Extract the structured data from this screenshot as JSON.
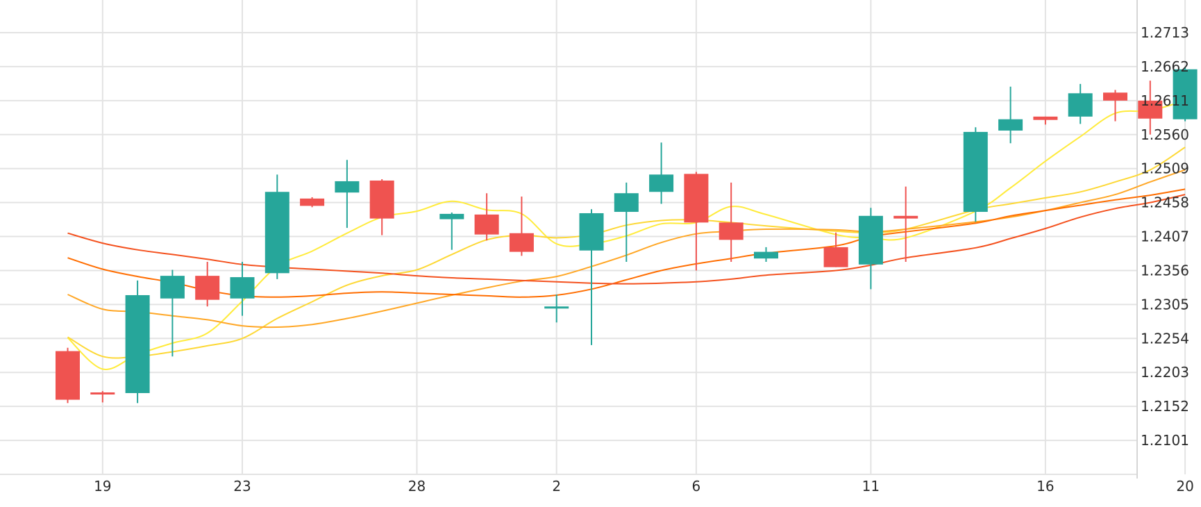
{
  "chart_data": {
    "type": "candlestick",
    "x_tick_labels": [
      "19",
      "23",
      "28",
      "2",
      "6",
      "11",
      "16",
      "20"
    ],
    "y_tick_labels": [
      "1.2713",
      "1.2662",
      "1.2611",
      "1.2560",
      "1.2509",
      "1.2458",
      "1.2407",
      "1.2356",
      "1.2305",
      "1.2254",
      "1.2203",
      "1.2152",
      "1.2101"
    ],
    "y_axis_position": "right",
    "grid": true,
    "ylim": [
      1.205,
      1.2756
    ],
    "colors": {
      "up": "#26a69a",
      "down": "#ef5350",
      "grid": "#e3e3e3"
    },
    "x_tick_dates": [
      "2024-04-19",
      "2024-04-23",
      "2024-04-28",
      "2024-05-02",
      "2024-05-06",
      "2024-05-11",
      "2024-05-16",
      "2024-05-20"
    ],
    "candles": [
      {
        "date": "2024-04-18",
        "open": 1.2235,
        "high": 1.224,
        "low": 1.2157,
        "close": 1.2162
      },
      {
        "date": "2024-04-19",
        "open": 1.2173,
        "high": 1.2175,
        "low": 1.2158,
        "close": 1.2171
      },
      {
        "date": "2024-04-20",
        "open": 1.2172,
        "high": 1.2341,
        "low": 1.2157,
        "close": 1.2319
      },
      {
        "date": "2024-04-21",
        "open": 1.2314,
        "high": 1.2357,
        "low": 1.2227,
        "close": 1.2348
      },
      {
        "date": "2024-04-22",
        "open": 1.2348,
        "high": 1.2369,
        "low": 1.2302,
        "close": 1.2312
      },
      {
        "date": "2024-04-23",
        "open": 1.2314,
        "high": 1.2369,
        "low": 1.2288,
        "close": 1.2346
      },
      {
        "date": "2024-04-24",
        "open": 1.2352,
        "high": 1.25,
        "low": 1.2343,
        "close": 1.2474
      },
      {
        "date": "2024-04-25",
        "open": 1.2464,
        "high": 1.2466,
        "low": 1.2451,
        "close": 1.2453
      },
      {
        "date": "2024-04-26",
        "open": 1.2473,
        "high": 1.2522,
        "low": 1.242,
        "close": 1.249
      },
      {
        "date": "2024-04-27",
        "open": 1.2491,
        "high": 1.2493,
        "low": 1.2409,
        "close": 1.2434
      },
      {
        "date": "2024-04-29",
        "open": 1.2433,
        "high": 1.2443,
        "low": 1.2387,
        "close": 1.2441
      },
      {
        "date": "2024-04-30",
        "open": 1.244,
        "high": 1.2472,
        "low": 1.2401,
        "close": 1.241
      },
      {
        "date": "2024-05-01",
        "open": 1.2412,
        "high": 1.2467,
        "low": 1.2378,
        "close": 1.2384
      },
      {
        "date": "2024-05-02",
        "open": 1.2302,
        "high": 1.232,
        "low": 1.2278,
        "close": 1.2302
      },
      {
        "date": "2024-05-03",
        "open": 1.2386,
        "high": 1.2448,
        "low": 1.2244,
        "close": 1.2442
      },
      {
        "date": "2024-05-04",
        "open": 1.2444,
        "high": 1.2488,
        "low": 1.2369,
        "close": 1.2472
      },
      {
        "date": "2024-05-05",
        "open": 1.2474,
        "high": 1.2548,
        "low": 1.2456,
        "close": 1.25
      },
      {
        "date": "2024-05-06",
        "open": 1.2501,
        "high": 1.2504,
        "low": 1.2356,
        "close": 1.2428
      },
      {
        "date": "2024-05-07",
        "open": 1.2428,
        "high": 1.2488,
        "low": 1.2369,
        "close": 1.2402
      },
      {
        "date": "2024-05-08",
        "open": 1.2374,
        "high": 1.2391,
        "low": 1.2369,
        "close": 1.2384
      },
      {
        "date": "2024-05-10",
        "open": 1.2391,
        "high": 1.2413,
        "low": 1.2361,
        "close": 1.2361
      },
      {
        "date": "2024-05-11",
        "open": 1.2365,
        "high": 1.245,
        "low": 1.2328,
        "close": 1.2438
      },
      {
        "date": "2024-05-12",
        "open": 1.2438,
        "high": 1.2482,
        "low": 1.2369,
        "close": 1.2434
      },
      {
        "date": "2024-05-14",
        "open": 1.2444,
        "high": 1.2571,
        "low": 1.2429,
        "close": 1.2564
      },
      {
        "date": "2024-05-15",
        "open": 1.2566,
        "high": 1.2632,
        "low": 1.2547,
        "close": 1.2583
      },
      {
        "date": "2024-05-16",
        "open": 1.2587,
        "high": 1.2587,
        "low": 1.2575,
        "close": 1.2582
      },
      {
        "date": "2024-05-17",
        "open": 1.2587,
        "high": 1.2636,
        "low": 1.2576,
        "close": 1.2622
      },
      {
        "date": "2024-05-18",
        "open": 1.2623,
        "high": 1.2627,
        "low": 1.258,
        "close": 1.2611
      },
      {
        "date": "2024-05-19",
        "open": 1.2611,
        "high": 1.2641,
        "low": 1.256,
        "close": 1.2584
      },
      {
        "date": "2024-05-20",
        "open": 1.2583,
        "high": 1.2661,
        "low": 1.258,
        "close": 1.2658
      }
    ],
    "moving_averages": [
      {
        "color": "#ffeb3b",
        "points": [
          [
            "2024-04-18",
            1.2255
          ],
          [
            "2024-04-19",
            1.2208
          ],
          [
            "2024-04-20",
            1.223
          ],
          [
            "2024-04-21",
            1.2247
          ],
          [
            "2024-04-22",
            1.2262
          ],
          [
            "2024-04-23",
            1.231
          ],
          [
            "2024-04-24",
            1.2362
          ],
          [
            "2024-04-25",
            1.2385
          ],
          [
            "2024-04-26",
            1.2412
          ],
          [
            "2024-04-27",
            1.2436
          ],
          [
            "2024-04-28",
            1.2445
          ],
          [
            "2024-04-29",
            1.246
          ],
          [
            "2024-04-30",
            1.2447
          ],
          [
            "2024-05-01",
            1.2441
          ],
          [
            "2024-05-02",
            1.2396
          ],
          [
            "2024-05-03",
            1.2396
          ],
          [
            "2024-05-04",
            1.2408
          ],
          [
            "2024-05-05",
            1.2426
          ],
          [
            "2024-05-06",
            1.2428
          ],
          [
            "2024-05-07",
            1.2452
          ],
          [
            "2024-05-08",
            1.244
          ],
          [
            "2024-05-10",
            1.241
          ],
          [
            "2024-05-11",
            1.2405
          ],
          [
            "2024-05-12",
            1.2405
          ],
          [
            "2024-05-14",
            1.2445
          ],
          [
            "2024-05-15",
            1.248
          ],
          [
            "2024-05-16",
            1.252
          ],
          [
            "2024-05-17",
            1.2557
          ],
          [
            "2024-05-18",
            1.2592
          ],
          [
            "2024-05-19",
            1.2596
          ],
          [
            "2024-05-20",
            1.2611
          ]
        ]
      },
      {
        "color": "#fdd835",
        "points": [
          [
            "2024-04-18",
            1.2256
          ],
          [
            "2024-04-19",
            1.2227
          ],
          [
            "2024-04-20",
            1.2227
          ],
          [
            "2024-04-21",
            1.2234
          ],
          [
            "2024-04-22",
            1.2243
          ],
          [
            "2024-04-23",
            1.2254
          ],
          [
            "2024-04-24",
            1.2284
          ],
          [
            "2024-04-25",
            1.2309
          ],
          [
            "2024-04-26",
            1.2334
          ],
          [
            "2024-04-27",
            1.2348
          ],
          [
            "2024-04-28",
            1.2357
          ],
          [
            "2024-04-29",
            1.238
          ],
          [
            "2024-04-30",
            1.2402
          ],
          [
            "2024-05-01",
            1.2409
          ],
          [
            "2024-05-02",
            1.2405
          ],
          [
            "2024-05-03",
            1.241
          ],
          [
            "2024-05-04",
            1.2424
          ],
          [
            "2024-05-05",
            1.2431
          ],
          [
            "2024-05-06",
            1.2432
          ],
          [
            "2024-05-07",
            1.2428
          ],
          [
            "2024-05-08",
            1.2423
          ],
          [
            "2024-05-10",
            1.2415
          ],
          [
            "2024-05-11",
            1.2413
          ],
          [
            "2024-05-12",
            1.2418
          ],
          [
            "2024-05-14",
            1.2447
          ],
          [
            "2024-05-15",
            1.2456
          ],
          [
            "2024-05-16",
            1.2465
          ],
          [
            "2024-05-17",
            1.2474
          ],
          [
            "2024-05-18",
            1.2489
          ],
          [
            "2024-05-19",
            1.2507
          ],
          [
            "2024-05-20",
            1.2541
          ]
        ]
      },
      {
        "color": "#ffa726",
        "points": [
          [
            "2024-04-18",
            1.232
          ],
          [
            "2024-04-19",
            1.2298
          ],
          [
            "2024-04-20",
            1.2294
          ],
          [
            "2024-04-21",
            1.2288
          ],
          [
            "2024-04-22",
            1.2282
          ],
          [
            "2024-04-23",
            1.2273
          ],
          [
            "2024-04-24",
            1.2271
          ],
          [
            "2024-04-25",
            1.2275
          ],
          [
            "2024-04-26",
            1.2284
          ],
          [
            "2024-04-27",
            1.2295
          ],
          [
            "2024-04-28",
            1.2307
          ],
          [
            "2024-04-29",
            1.2319
          ],
          [
            "2024-04-30",
            1.233
          ],
          [
            "2024-05-01",
            1.234
          ],
          [
            "2024-05-02",
            1.2347
          ],
          [
            "2024-05-03",
            1.2362
          ],
          [
            "2024-05-04",
            1.2379
          ],
          [
            "2024-05-05",
            1.2398
          ],
          [
            "2024-05-06",
            1.2411
          ],
          [
            "2024-05-07",
            1.2415
          ],
          [
            "2024-05-08",
            1.2418
          ],
          [
            "2024-05-10",
            1.2417
          ],
          [
            "2024-05-11",
            1.2414
          ],
          [
            "2024-05-12",
            1.2418
          ],
          [
            "2024-05-14",
            1.2429
          ],
          [
            "2024-05-15",
            1.2436
          ],
          [
            "2024-05-16",
            1.2446
          ],
          [
            "2024-05-17",
            1.2458
          ],
          [
            "2024-05-18",
            1.247
          ],
          [
            "2024-05-19",
            1.2489
          ],
          [
            "2024-05-20",
            1.2507
          ]
        ]
      },
      {
        "color": "#ff6d00",
        "points": [
          [
            "2024-04-18",
            1.2375
          ],
          [
            "2024-04-19",
            1.2358
          ],
          [
            "2024-04-20",
            1.2347
          ],
          [
            "2024-04-21",
            1.2338
          ],
          [
            "2024-04-22",
            1.2326
          ],
          [
            "2024-04-23",
            1.2318
          ],
          [
            "2024-04-24",
            1.2316
          ],
          [
            "2024-04-25",
            1.2318
          ],
          [
            "2024-04-26",
            1.2322
          ],
          [
            "2024-04-27",
            1.2324
          ],
          [
            "2024-04-28",
            1.2322
          ],
          [
            "2024-04-29",
            1.232
          ],
          [
            "2024-04-30",
            1.2318
          ],
          [
            "2024-05-01",
            1.2316
          ],
          [
            "2024-05-02",
            1.2319
          ],
          [
            "2024-05-03",
            1.2328
          ],
          [
            "2024-05-04",
            1.2342
          ],
          [
            "2024-05-05",
            1.2356
          ],
          [
            "2024-05-06",
            1.2366
          ],
          [
            "2024-05-07",
            1.2374
          ],
          [
            "2024-05-08",
            1.2382
          ],
          [
            "2024-05-10",
            1.2393
          ],
          [
            "2024-05-11",
            1.2407
          ],
          [
            "2024-05-12",
            1.2414
          ],
          [
            "2024-05-14",
            1.2427
          ],
          [
            "2024-05-15",
            1.2438
          ],
          [
            "2024-05-16",
            1.2446
          ],
          [
            "2024-05-17",
            1.2454
          ],
          [
            "2024-05-18",
            1.2462
          ],
          [
            "2024-05-19",
            1.2469
          ],
          [
            "2024-05-20",
            1.2478
          ]
        ]
      },
      {
        "color": "#f4511e",
        "points": [
          [
            "2024-04-18",
            1.2412
          ],
          [
            "2024-04-19",
            1.2397
          ],
          [
            "2024-04-20",
            1.2387
          ],
          [
            "2024-04-21",
            1.238
          ],
          [
            "2024-04-22",
            1.2373
          ],
          [
            "2024-04-23",
            1.2365
          ],
          [
            "2024-04-24",
            1.2361
          ],
          [
            "2024-04-25",
            1.2358
          ],
          [
            "2024-04-26",
            1.2355
          ],
          [
            "2024-04-27",
            1.2352
          ],
          [
            "2024-04-28",
            1.2348
          ],
          [
            "2024-04-29",
            1.2345
          ],
          [
            "2024-04-30",
            1.2343
          ],
          [
            "2024-05-01",
            1.2341
          ],
          [
            "2024-05-02",
            1.2339
          ],
          [
            "2024-05-03",
            1.2337
          ],
          [
            "2024-05-04",
            1.2336
          ],
          [
            "2024-05-05",
            1.2337
          ],
          [
            "2024-05-06",
            1.2339
          ],
          [
            "2024-05-07",
            1.2343
          ],
          [
            "2024-05-08",
            1.2349
          ],
          [
            "2024-05-10",
            1.2356
          ],
          [
            "2024-05-11",
            1.2364
          ],
          [
            "2024-05-12",
            1.2375
          ],
          [
            "2024-05-14",
            1.239
          ],
          [
            "2024-05-15",
            1.2404
          ],
          [
            "2024-05-16",
            1.2419
          ],
          [
            "2024-05-17",
            1.2436
          ],
          [
            "2024-05-18",
            1.2449
          ],
          [
            "2024-05-19",
            1.2458
          ],
          [
            "2024-05-20",
            1.247
          ]
        ]
      }
    ]
  }
}
